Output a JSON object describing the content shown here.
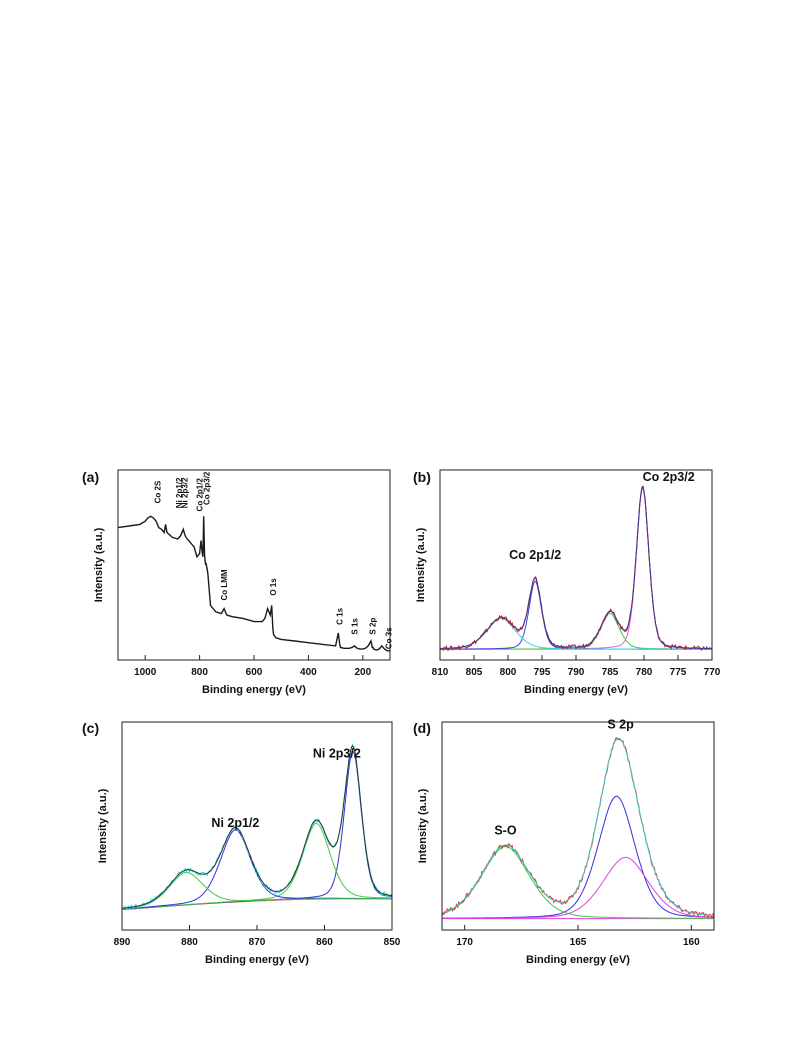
{
  "chart_data": [
    {
      "panel": "(a)",
      "type": "line",
      "xlabel": "Binding energy (eV)",
      "ylabel": "Intensity (a.u.)",
      "xlim": [
        1100,
        100
      ],
      "x_ticks": [
        1000,
        800,
        600,
        400,
        200
      ],
      "y_ticks": false,
      "series": [
        {
          "color": "#1a1a1a",
          "x": [
            1100,
            1060,
            1020,
            1000,
            990,
            980,
            970,
            960,
            950,
            940,
            930,
            925,
            920,
            900,
            880,
            870,
            860,
            855,
            850,
            840,
            830,
            820,
            810,
            800,
            795,
            790,
            788,
            785,
            782,
            780,
            778,
            776,
            770,
            760,
            740,
            720,
            710,
            705,
            700,
            680,
            640,
            600,
            570,
            560,
            550,
            540,
            535,
            531,
            528,
            520,
            500,
            450,
            400,
            350,
            300,
            290,
            285,
            282,
            280,
            270,
            250,
            240,
            230,
            225,
            220,
            210,
            200,
            190,
            180,
            170,
            165,
            162,
            160,
            150,
            140,
            130,
            120,
            110,
            100
          ],
          "y": [
            0.78,
            0.79,
            0.8,
            0.82,
            0.84,
            0.85,
            0.84,
            0.82,
            0.78,
            0.77,
            0.75,
            0.8,
            0.75,
            0.72,
            0.71,
            0.73,
            0.77,
            0.74,
            0.72,
            0.7,
            0.68,
            0.66,
            0.6,
            0.62,
            0.7,
            0.62,
            0.6,
            0.85,
            0.62,
            0.58,
            0.55,
            0.56,
            0.5,
            0.3,
            0.26,
            0.25,
            0.28,
            0.26,
            0.24,
            0.23,
            0.22,
            0.2,
            0.2,
            0.22,
            0.28,
            0.24,
            0.3,
            0.16,
            0.12,
            0.1,
            0.09,
            0.08,
            0.07,
            0.06,
            0.05,
            0.13,
            0.06,
            0.04,
            0.04,
            0.035,
            0.035,
            0.04,
            0.05,
            0.04,
            0.035,
            0.03,
            0.03,
            0.035,
            0.05,
            0.08,
            0.04,
            0.04,
            0.03,
            0.025,
            0.03,
            0.05,
            0.03,
            0.02,
            0.02
          ]
        }
      ],
      "annotations": [
        {
          "text": "Co 2S",
          "x": 955
        },
        {
          "text": "Ni 2p1/2",
          "x": 875
        },
        {
          "text": "Ni 2p3/2",
          "x": 855
        },
        {
          "text": "Co 2p1/2",
          "x": 800
        },
        {
          "text": "Co 2p3/2",
          "x": 775
        },
        {
          "text": "Co LMM",
          "x": 710
        },
        {
          "text": "O 1s",
          "x": 531
        },
        {
          "text": "C 1s",
          "x": 285
        },
        {
          "text": "S 1s",
          "x": 230
        },
        {
          "text": "S 2p",
          "x": 165
        },
        {
          "text": "Co 3s",
          "x": 105
        }
      ]
    },
    {
      "panel": "(b)",
      "type": "line",
      "xlabel": "Binding energy (eV)",
      "ylabel": "Intensity (a.u.)",
      "xlim": [
        810,
        770
      ],
      "x_ticks": [
        810,
        805,
        800,
        795,
        790,
        785,
        780,
        775,
        770
      ],
      "y_ticks": false,
      "baseline": 0.03,
      "components": [
        {
          "center": 780.2,
          "height": 1.0,
          "width": 0.95,
          "color": "#e060e0"
        },
        {
          "center": 785.0,
          "height": 0.22,
          "width": 1.4,
          "color": "#40cc40"
        },
        {
          "center": 796.0,
          "height": 0.42,
          "width": 0.95,
          "color": "#4040e0"
        },
        {
          "center": 801.0,
          "height": 0.19,
          "width": 2.2,
          "color": "#40ccee"
        }
      ],
      "envelope_color": "#cc2222",
      "fit_color": "#3b3b9a",
      "annotations": [
        {
          "text": "Co 2p3/2",
          "x": 780.2
        },
        {
          "text": "Co 2p1/2",
          "x": 796.0
        }
      ]
    },
    {
      "panel": "(c)",
      "type": "line",
      "xlabel": "Binding energy (eV)",
      "ylabel": "Intensity (a.u.)",
      "xlim": [
        890,
        850
      ],
      "x_ticks": [
        890,
        880,
        870,
        860,
        850
      ],
      "y_ticks": false,
      "baseline_from": 0.04,
      "baseline_to": 0.1,
      "baseline_color": "#dd2222",
      "components": [
        {
          "center": 855.8,
          "height": 0.82,
          "width": 1.3,
          "color": "#3030dd"
        },
        {
          "center": 861.2,
          "height": 0.42,
          "width": 2.1,
          "color": "#40cc40"
        },
        {
          "center": 873.2,
          "height": 0.4,
          "width": 2.3,
          "color": "#3030dd"
        },
        {
          "center": 880.5,
          "height": 0.18,
          "width": 2.6,
          "color": "#40cc40"
        }
      ],
      "envelope_color": "#40dddd",
      "fit_color": "#303030",
      "annotations": [
        {
          "text": "Ni 2p3/2",
          "x": 855.8
        },
        {
          "text": "Ni 2p1/2",
          "x": 873.2
        }
      ]
    },
    {
      "panel": "(d)",
      "type": "line",
      "xlabel": "Binding energy (eV)",
      "ylabel": "Intensity (a.u.)",
      "xlim": [
        171,
        159
      ],
      "x_ticks": [
        170,
        165,
        160
      ],
      "y_ticks": false,
      "baseline": 0.03,
      "baseline_color": "#dd44dd",
      "components": [
        {
          "center": 163.3,
          "height": 0.68,
          "width": 0.85,
          "color": "#3030dd"
        },
        {
          "center": 162.9,
          "height": 0.34,
          "width": 1.05,
          "color": "#dd44dd"
        },
        {
          "center": 168.2,
          "height": 0.4,
          "width": 1.1,
          "color": "#40cc40"
        }
      ],
      "envelope_color": "#dd3333",
      "fit_color": "#40cccc",
      "annotations": [
        {
          "text": "S 2p",
          "x": 163.3
        },
        {
          "text": "S-O",
          "x": 168.2
        }
      ]
    }
  ],
  "labels": {
    "panel_a": "(a)",
    "panel_b": "(b)",
    "panel_c": "(c)",
    "panel_d": "(d)"
  }
}
